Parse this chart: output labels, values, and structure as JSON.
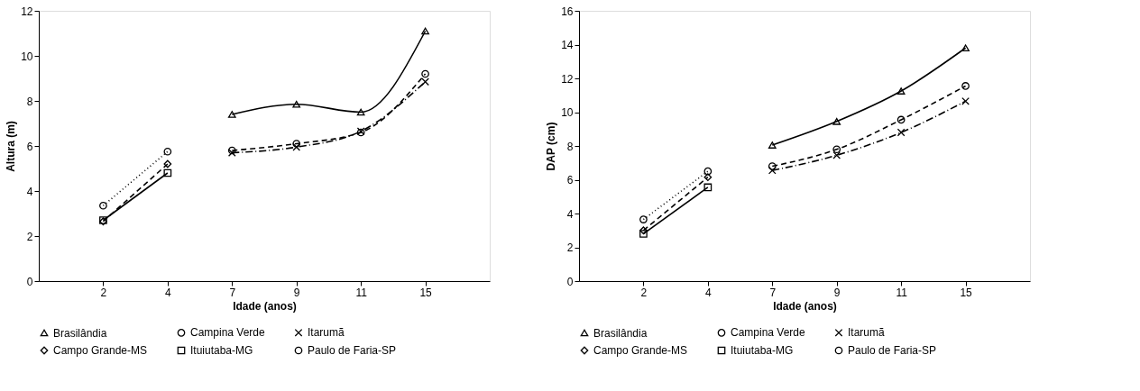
{
  "chart_data": [
    {
      "type": "line",
      "xlabel": "Idade (anos)",
      "ylabel": "Altura (m)",
      "categories": [
        "2",
        "4",
        "7",
        "9",
        "11",
        "15"
      ],
      "ylim": [
        0,
        12
      ],
      "yticks": [
        0,
        2,
        4,
        6,
        8,
        10,
        12
      ],
      "grid": false,
      "legend": "bottom",
      "series": [
        {
          "name": "Brasilândia",
          "color": "#000000",
          "marker": "triangle",
          "line_style": "solid",
          "values": [
            null,
            null,
            7.4,
            7.85,
            7.5,
            11.1
          ]
        },
        {
          "name": "Campina Verde",
          "color": "#000000",
          "marker": "circle",
          "line_style": "dashed",
          "values": [
            null,
            null,
            5.8,
            6.1,
            6.6,
            9.2
          ]
        },
        {
          "name": "Itarumã",
          "color": "#000000",
          "marker": "cross",
          "line_style": "dashdot",
          "values": [
            null,
            null,
            5.7,
            5.95,
            6.65,
            8.85
          ]
        },
        {
          "name": "Campo Grande-MS",
          "color": "#000000",
          "marker": "diamond",
          "line_style": "dashed",
          "values": [
            2.65,
            5.2,
            null,
            null,
            null,
            null
          ]
        },
        {
          "name": "Ituiutaba-MG",
          "color": "#000000",
          "marker": "square",
          "line_style": "solid",
          "values": [
            2.7,
            4.8,
            null,
            null,
            null,
            null
          ]
        },
        {
          "name": "Paulo de Faria-SP",
          "color": "#000000",
          "marker": "circle",
          "line_style": "dotted",
          "values": [
            3.35,
            5.75,
            null,
            null,
            null,
            null
          ]
        }
      ]
    },
    {
      "type": "line",
      "xlabel": "Idade (anos)",
      "ylabel": "DAP (cm)",
      "categories": [
        "2",
        "4",
        "7",
        "9",
        "11",
        "15"
      ],
      "ylim": [
        0,
        16
      ],
      "yticks": [
        0,
        2,
        4,
        6,
        8,
        10,
        12,
        14,
        16
      ],
      "grid": false,
      "legend": "bottom",
      "series": [
        {
          "name": "Brasilândia",
          "color": "#000000",
          "marker": "triangle",
          "line_style": "solid",
          "values": [
            null,
            null,
            8.05,
            9.45,
            11.25,
            13.8
          ]
        },
        {
          "name": "Campina Verde",
          "color": "#000000",
          "marker": "circle",
          "line_style": "dashed",
          "values": [
            null,
            null,
            6.8,
            7.8,
            9.55,
            11.55
          ]
        },
        {
          "name": "Itarumã",
          "color": "#000000",
          "marker": "cross",
          "line_style": "dashdot",
          "values": [
            null,
            null,
            6.55,
            7.45,
            8.8,
            10.65
          ]
        },
        {
          "name": "Campo Grande-MS",
          "color": "#000000",
          "marker": "diamond",
          "line_style": "dashed",
          "values": [
            3.0,
            6.15,
            null,
            null,
            null,
            null
          ]
        },
        {
          "name": "Ituiutaba-MG",
          "color": "#000000",
          "marker": "square",
          "line_style": "solid",
          "values": [
            2.8,
            5.55,
            null,
            null,
            null,
            null
          ]
        },
        {
          "name": "Paulo de Faria-SP",
          "color": "#000000",
          "marker": "circle",
          "line_style": "dotted",
          "values": [
            3.65,
            6.5,
            null,
            null,
            null,
            null
          ]
        }
      ]
    }
  ]
}
